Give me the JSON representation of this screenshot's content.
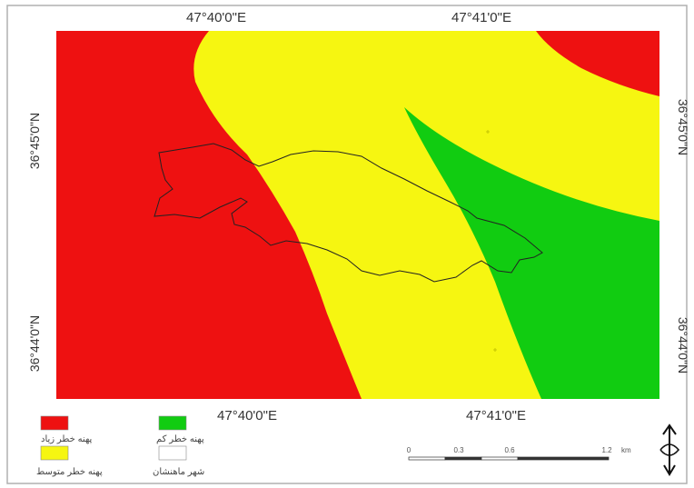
{
  "map": {
    "top_labels": [
      "47°40'0\"E",
      "47°41'0\"E"
    ],
    "bottom_labels": [
      "47°40'0\"E",
      "47°41'0\"E"
    ],
    "left_labels": [
      "36°45'0\"N",
      "36°44'0\"N"
    ],
    "right_labels": [
      "36°45'0\"N",
      "36°44'0\"N"
    ],
    "zone_colors": {
      "high": "#ee1111",
      "medium": "#f6f611",
      "low": "#11cc11"
    }
  },
  "legend": {
    "items": [
      {
        "label": "پهنه خطر زیاد",
        "color": "#ee1111"
      },
      {
        "label": "پهنه خطر کم",
        "color": "#11cc11"
      },
      {
        "label": "پهنه خطر متوسط",
        "color": "#f6f611"
      },
      {
        "label": "شهر ماهنشان",
        "color": "#ffffff"
      }
    ]
  },
  "scale_bar": {
    "ticks": [
      "0",
      "0.3",
      "0.6",
      "1.2"
    ],
    "unit": "km"
  },
  "north_arrow": {
    "icon": "north-arrow-icon"
  }
}
